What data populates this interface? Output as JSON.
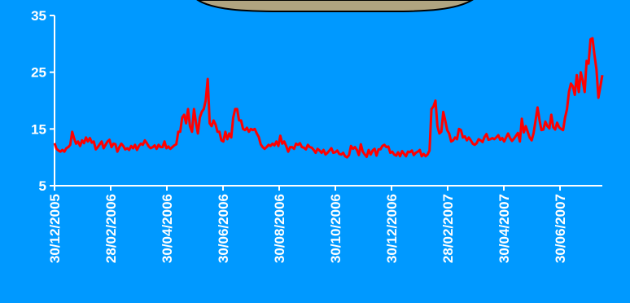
{
  "chart_data": {
    "type": "line",
    "title": "",
    "xlabel": "",
    "ylabel": "",
    "ylim": [
      5,
      35
    ],
    "yticks": [
      5,
      15,
      25,
      35
    ],
    "xticks": [
      "30/12/2005",
      "28/02/2006",
      "30/04/2006",
      "30/06/2006",
      "30/08/2006",
      "30/10/2006",
      "30/12/2006",
      "28/02/2007",
      "30/04/2007",
      "30/06/2007"
    ],
    "grid": false,
    "legend": "none",
    "colors": {
      "background": "#0099ff",
      "line": "#ff0000",
      "axis": "#ffffff",
      "text": "#ffffff",
      "top_shape_fill": "#b0a480"
    },
    "series": [
      {
        "values": [
          12.5,
          11.5,
          11.2,
          11,
          11.3,
          11,
          11.6,
          11.8,
          12.2,
          14.5,
          13.3,
          12.4,
          12.8,
          12,
          13,
          12.5,
          13.5,
          12.8,
          13.4,
          12.6,
          12.8,
          11.4,
          11.8,
          12.3,
          12.8,
          11.6,
          12.2,
          12.8,
          13.1,
          11.8,
          12.4,
          12.3,
          11,
          11.8,
          12.4,
          12,
          11.4,
          11.6,
          11.3,
          12,
          11.6,
          12.2,
          11.3,
          12,
          12.4,
          12.2,
          13,
          12.5,
          11.9,
          11.6,
          11.8,
          12.1,
          11.5,
          12.2,
          11.8,
          11.8,
          12.8,
          11.6,
          11.9,
          11.5,
          11.8,
          12.1,
          12.3,
          14.5,
          14.5,
          17,
          17.5,
          16,
          18.5,
          15.5,
          14.5,
          18.5,
          16.2,
          14.2,
          17,
          18,
          18.5,
          20,
          23.8,
          16,
          15.5,
          16.5,
          15.8,
          14.5,
          14.5,
          13,
          12.8,
          14.5,
          13.2,
          14.2,
          13.5,
          17,
          18.5,
          18.5,
          16.5,
          16.5,
          15,
          14.8,
          15.2,
          14.5,
          15,
          14.8,
          15,
          14.2,
          13.6,
          12.3,
          11.8,
          11.5,
          11.8,
          12.2,
          12,
          12.4,
          12.1,
          12.8,
          12,
          13.8,
          12.4,
          12.8,
          12,
          11,
          11.8,
          11.8,
          11.5,
          12.4,
          12.2,
          12.5,
          11.8,
          11.7,
          11.4,
          12.2,
          11.8,
          11.7,
          11.3,
          10.8,
          11.5,
          11.2,
          10.8,
          11.3,
          10.5,
          10.8,
          11.2,
          11.6,
          10.8,
          10.9,
          11.2,
          10.6,
          10.5,
          10.8,
          10.2,
          10,
          10.4,
          12,
          11.5,
          11.8,
          11.3,
          10.4,
          12.3,
          11,
          10.5,
          10.1,
          11.3,
          10.5,
          11.2,
          11.5,
          10.3,
          11.4,
          11.4,
          12,
          12.2,
          11.8,
          11.9,
          10.8,
          11,
          10.5,
          10.3,
          10.9,
          10.2,
          11.1,
          10.6,
          10.2,
          11,
          10.9,
          11.2,
          10.4,
          10.8,
          11,
          11.3,
          10.2,
          10.6,
          10.2,
          10.5,
          11.2,
          18.5,
          19,
          20,
          15.5,
          14.2,
          14.5,
          18,
          16.5,
          14.8,
          14.2,
          12.8,
          13,
          13.5,
          13.2,
          15,
          14.8,
          13.5,
          13.7,
          13,
          13.5,
          13,
          12.4,
          12.2,
          12.5,
          13.2,
          13,
          12.7,
          13.6,
          14.1,
          13.1,
          13.2,
          13.4,
          13.2,
          13.5,
          13.9,
          13.1,
          13.4,
          12.8,
          13.5,
          14.2,
          13.4,
          12.9,
          13.3,
          13.8,
          14.3,
          12.8,
          16.8,
          14.4,
          15.5,
          14.5,
          13.5,
          13,
          14.3,
          16.5,
          18.8,
          16.6,
          14.8,
          14.9,
          16.3,
          15.5,
          15.1,
          17.5,
          15.3,
          14.9,
          16.1,
          15.3,
          15,
          14.8,
          17,
          18.5,
          21.5,
          23,
          22.5,
          21,
          24.5,
          21.5,
          25,
          23.5,
          21.5,
          27,
          26.5,
          30.8,
          31,
          28,
          25.5,
          20.5,
          22.5,
          24.5
        ]
      }
    ]
  }
}
